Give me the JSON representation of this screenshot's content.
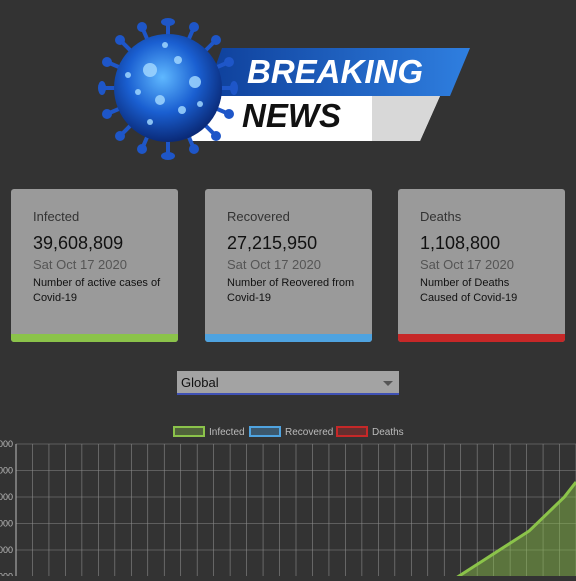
{
  "header": {
    "line1": "BREAKING",
    "line2": "NEWS",
    "virus_icon": "coronavirus-icon"
  },
  "cards": [
    {
      "label": "Infected",
      "count": "39,608,809",
      "date": "Sat Oct 17 2020",
      "description": "Number of active cases of Covid-19",
      "color": "#8bc34a"
    },
    {
      "label": "Recovered",
      "count": "27,215,950",
      "date": "Sat Oct 17 2020",
      "description": "Number of Reovered from Covid-19",
      "color": "#4fa3e0"
    },
    {
      "label": "Deaths",
      "count": "1,108,800",
      "date": "Sat Oct 17 2020",
      "description": "Number of Deaths Caused of Covid-19",
      "color": "#c62828"
    }
  ],
  "region_select": {
    "value": "Global"
  },
  "chart_data": {
    "type": "area",
    "legend": [
      "Infected",
      "Recovered",
      "Deaths"
    ],
    "legend_colors": [
      "#8bc34a",
      "#4fa3e0",
      "#c62828"
    ],
    "legend_position": "top-center",
    "y_tick_labels": [
      "000",
      "000",
      "000",
      "000",
      "000",
      "000"
    ],
    "grid": true,
    "series": [
      {
        "name": "Infected",
        "values": [
          0,
          1,
          2,
          3,
          5,
          7,
          9,
          11,
          13,
          15,
          17,
          20,
          23,
          26,
          30
        ]
      }
    ]
  }
}
